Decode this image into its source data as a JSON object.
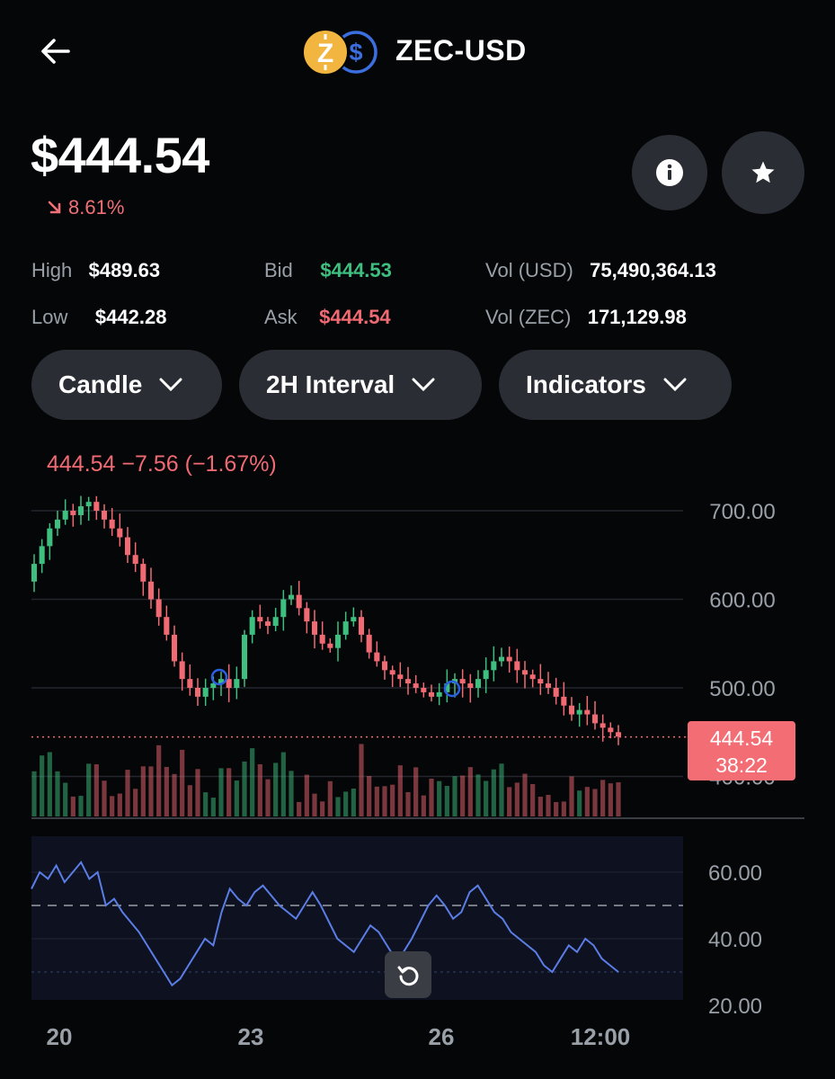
{
  "header": {
    "pair": "ZEC-USD",
    "icons": [
      "zcash-coin-icon",
      "usd-coin-icon"
    ]
  },
  "price": "$444.54",
  "change": "8.61%",
  "stats": {
    "high_label": "High",
    "high": "$489.63",
    "low_label": "Low",
    "low": "$442.28",
    "bid_label": "Bid",
    "bid": "$444.53",
    "ask_label": "Ask",
    "ask": "$444.54",
    "vol_usd_label": "Vol (USD)",
    "vol_usd": "75,490,364.13",
    "vol_zec_label": "Vol (ZEC)",
    "vol_zec": "171,129.98"
  },
  "controls": {
    "chart_type": "Candle",
    "interval": "2H Interval",
    "indicators": "Indicators"
  },
  "ohlc_readout": "444.54  −7.56 (−1.67%)",
  "price_tag": {
    "price": "444.54",
    "countdown": "38:22"
  },
  "colors": {
    "up": "#3fbf7f",
    "down": "#f06a73",
    "rsi": "#5b7de6",
    "background": "#050608"
  },
  "chart_data": {
    "type": "candlestick",
    "y_ticks": [
      "700.00",
      "600.00",
      "500.00",
      "400.00"
    ],
    "ylim": [
      390,
      720
    ],
    "x_ticks": [
      "20",
      "23",
      "26",
      "12:00"
    ],
    "current_price": 444.54,
    "close_series": [
      640,
      660,
      680,
      690,
      700,
      695,
      705,
      710,
      700,
      690,
      680,
      670,
      650,
      640,
      620,
      600,
      580,
      560,
      530,
      510,
      500,
      490,
      500,
      505,
      510,
      500,
      510,
      560,
      580,
      575,
      570,
      580,
      600,
      605,
      590,
      575,
      560,
      550,
      545,
      560,
      575,
      580,
      560,
      540,
      530,
      520,
      515,
      510,
      505,
      500,
      495,
      490,
      495,
      505,
      510,
      505,
      500,
      510,
      520,
      530,
      535,
      530,
      520,
      515,
      510,
      505,
      500,
      490,
      480,
      470,
      475,
      470,
      460,
      455,
      450,
      445
    ],
    "rsi": {
      "y_ticks": [
        "60.00",
        "40.00",
        "20.00"
      ],
      "ylim": [
        20,
        70
      ],
      "midline": 50,
      "band": [
        30,
        70
      ],
      "values": [
        55,
        60,
        58,
        62,
        57,
        60,
        63,
        58,
        60,
        50,
        52,
        48,
        45,
        42,
        38,
        34,
        30,
        26,
        28,
        32,
        36,
        40,
        38,
        48,
        55,
        52,
        50,
        54,
        56,
        53,
        50,
        48,
        46,
        50,
        54,
        50,
        45,
        40,
        38,
        36,
        40,
        44,
        42,
        38,
        34,
        36,
        40,
        45,
        50,
        53,
        50,
        46,
        48,
        54,
        56,
        52,
        48,
        46,
        42,
        40,
        38,
        36,
        32,
        30,
        34,
        38,
        36,
        40,
        38,
        34,
        32,
        30
      ]
    }
  }
}
